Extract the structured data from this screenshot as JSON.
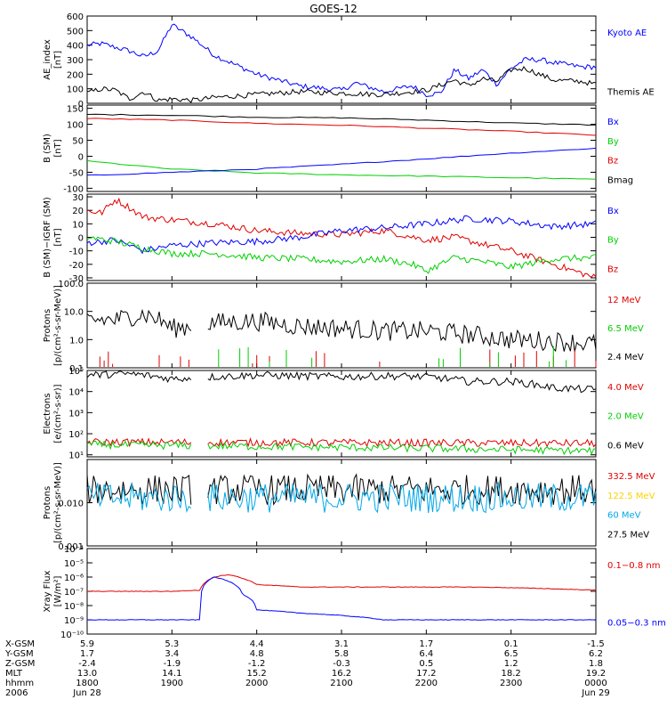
{
  "title": "GOES-12",
  "colors": {
    "black": "#000000",
    "red": "#e00000",
    "green": "#00d000",
    "blue": "#0000ff",
    "yellow": "#ffd000",
    "cyan": "#00a8e8"
  },
  "chart_data": [
    {
      "id": "ae",
      "type": "line",
      "ylabel": [
        "AE_index",
        "[nT]"
      ],
      "scale": "linear",
      "ylim": [
        0,
        600
      ],
      "ticks": [
        0,
        100,
        200,
        300,
        400,
        500,
        600
      ],
      "tick_labels": [
        "0",
        "100",
        "200",
        "300",
        "400",
        "500",
        "600"
      ],
      "legend": [
        {
          "name": "Kyoto AE",
          "color": "blue"
        },
        {
          "name": "Themis AE",
          "color": "black"
        }
      ],
      "series": [
        {
          "name": "Kyoto AE",
          "color": "blue",
          "x": [
            1800,
            1810,
            1830,
            1840,
            1850,
            1900,
            1915,
            1930,
            2000,
            2030,
            2100,
            2110,
            2130,
            2150,
            2200,
            2210,
            2220,
            2230,
            2240,
            2250,
            2300,
            2310,
            2320,
            2330,
            2350,
            2400
          ],
          "y": [
            400,
            410,
            360,
            320,
            360,
            540,
            450,
            330,
            200,
            120,
            90,
            140,
            80,
            120,
            60,
            70,
            230,
            170,
            230,
            130,
            240,
            300,
            300,
            280,
            250,
            250
          ]
        },
        {
          "name": "Themis AE",
          "color": "black",
          "x": [
            1800,
            1810,
            1820,
            1830,
            1840,
            1850,
            1900,
            1915,
            1930,
            2000,
            2030,
            2100,
            2130,
            2200,
            2220,
            2230,
            2240,
            2250,
            2300,
            2310,
            2320,
            2330,
            2350,
            2400
          ],
          "y": [
            70,
            100,
            90,
            30,
            80,
            20,
            30,
            20,
            40,
            60,
            80,
            70,
            60,
            90,
            160,
            120,
            170,
            150,
            230,
            240,
            200,
            160,
            150,
            130
          ]
        }
      ]
    },
    {
      "id": "b",
      "type": "line",
      "ylabel": [
        "B (SM)",
        "[nT]"
      ],
      "scale": "linear",
      "ylim": [
        -110,
        160
      ],
      "ticks": [
        -100,
        -50,
        0,
        50,
        100,
        150
      ],
      "tick_labels": [
        "-100",
        "-50",
        "0",
        "50",
        "100",
        "150"
      ],
      "legend": [
        {
          "name": "Bx",
          "color": "blue"
        },
        {
          "name": "By",
          "color": "green"
        },
        {
          "name": "Bz",
          "color": "red"
        },
        {
          "name": "Bmag",
          "color": "black"
        }
      ],
      "series": [
        {
          "name": "Bmag",
          "color": "black",
          "x": [
            1800,
            1900,
            2000,
            2100,
            2200,
            2300,
            2400
          ],
          "y": [
            131,
            128,
            122,
            120,
            113,
            104,
            98
          ]
        },
        {
          "name": "Bz",
          "color": "red",
          "x": [
            1800,
            1900,
            2000,
            2100,
            2200,
            2300,
            2400
          ],
          "y": [
            118,
            113,
            103,
            97,
            88,
            78,
            66
          ]
        },
        {
          "name": "By",
          "color": "green",
          "x": [
            1800,
            1900,
            2000,
            2100,
            2200,
            2300,
            2400
          ],
          "y": [
            -15,
            -40,
            -52,
            -58,
            -62,
            -67,
            -72
          ]
        },
        {
          "name": "Bx",
          "color": "blue",
          "x": [
            1800,
            1900,
            2000,
            2100,
            2200,
            2300,
            2400
          ],
          "y": [
            -60,
            -50,
            -40,
            -25,
            -8,
            10,
            25
          ]
        }
      ]
    },
    {
      "id": "bdiff",
      "type": "line",
      "ylabel": [
        "B (SM)−IGRF (SM)",
        "[nT]"
      ],
      "scale": "linear",
      "ylim": [
        -32,
        32
      ],
      "ticks": [
        -30,
        -20,
        -10,
        0,
        10,
        20,
        30
      ],
      "tick_labels": [
        "-30",
        "-20",
        "-10",
        "0",
        "10",
        "20",
        "30"
      ],
      "legend": [
        {
          "name": "Bx",
          "color": "blue"
        },
        {
          "name": "By",
          "color": "green"
        },
        {
          "name": "Bz",
          "color": "red"
        }
      ],
      "series": [
        {
          "name": "Bz",
          "color": "red",
          "x": [
            1800,
            1810,
            1820,
            1830,
            1840,
            1850,
            1900,
            1930,
            2000,
            2030,
            2100,
            2130,
            2200,
            2220,
            2240,
            2300,
            2330,
            2400
          ],
          "y": [
            20,
            18,
            28,
            22,
            15,
            14,
            13,
            10,
            5,
            3,
            2,
            5,
            -2,
            0,
            -5,
            -10,
            -20,
            -30
          ]
        },
        {
          "name": "Bx",
          "color": "blue",
          "x": [
            1800,
            1820,
            1840,
            1900,
            1930,
            2000,
            2030,
            2100,
            2130,
            2200,
            2230,
            2300,
            2330,
            2400
          ],
          "y": [
            -4,
            -2,
            -10,
            -6,
            -4,
            -3,
            0,
            5,
            7,
            10,
            14,
            12,
            8,
            10
          ]
        },
        {
          "name": "By",
          "color": "green",
          "x": [
            1800,
            1820,
            1840,
            1900,
            1930,
            2000,
            2030,
            2100,
            2130,
            2150,
            2200,
            2220,
            2240,
            2300,
            2330,
            2400
          ],
          "y": [
            0,
            -3,
            -8,
            -12,
            -12,
            -15,
            -16,
            -18,
            -16,
            -20,
            -25,
            -15,
            -18,
            -22,
            -16,
            -15
          ]
        }
      ]
    },
    {
      "id": "protons_hi",
      "type": "line",
      "ylabel": [
        "Protons",
        "[p/(cm²-s-sr-MeV)]"
      ],
      "scale": "log",
      "ylim": [
        0.1,
        100
      ],
      "ticks": [
        0.1,
        1,
        10,
        100
      ],
      "tick_labels": [
        "0.1",
        "1.0",
        "10.0",
        "100.0"
      ],
      "legend": [
        {
          "name": "12 MeV",
          "color": "red"
        },
        {
          "name": "6.5 MeV",
          "color": "green"
        },
        {
          "name": "2.4 MeV",
          "color": "black"
        }
      ],
      "gaps": [
        [
          1915,
          1925
        ]
      ],
      "series": [
        {
          "name": "2.4 MeV",
          "color": "black",
          "x": [
            1800,
            1820,
            1840,
            1900,
            1910,
            1930,
            2000,
            2030,
            2100,
            2130,
            2200,
            2230,
            2300,
            2330,
            2400
          ],
          "y": [
            5,
            5,
            8,
            2.5,
            2.8,
            4,
            4.5,
            3,
            2.5,
            2,
            2,
            1.5,
            1,
            0.9,
            0.7
          ]
        }
      ]
    },
    {
      "id": "electrons",
      "type": "line",
      "ylabel": [
        "Electrons",
        "[e/(cm²-s-sr)]"
      ],
      "scale": "log",
      "ylim": [
        8,
        100000
      ],
      "ticks": [
        10,
        100,
        1000,
        10000,
        100000
      ],
      "tick_labels": [
        "10¹",
        "10²",
        "10³",
        "10⁴",
        "10⁵"
      ],
      "legend": [
        {
          "name": "4.0 MeV",
          "color": "red"
        },
        {
          "name": "2.0 MeV",
          "color": "green"
        },
        {
          "name": "0.6 MeV",
          "color": "black"
        }
      ],
      "gaps": [
        [
          1915,
          1925
        ]
      ],
      "series": [
        {
          "name": "0.6 MeV",
          "color": "black",
          "x": [
            1800,
            1830,
            1900,
            1930,
            2000,
            2030,
            2100,
            2130,
            2200,
            2230,
            2300,
            2330,
            2400
          ],
          "y": [
            60000,
            70000,
            40000,
            50000,
            60000,
            55000,
            50000,
            55000,
            50000,
            30000,
            30000,
            15000,
            12000
          ]
        },
        {
          "name": "4.0 MeV",
          "color": "red",
          "x": [
            1800,
            2400
          ],
          "y": [
            40,
            35
          ]
        },
        {
          "name": "2.0 MeV",
          "color": "green",
          "x": [
            1800,
            2400
          ],
          "y": [
            30,
            15
          ]
        }
      ]
    },
    {
      "id": "protons_lo",
      "type": "line",
      "ylabel": [
        "Protons",
        "[p/(cm²-s-sr-MeV)]"
      ],
      "scale": "log",
      "ylim": [
        0.001,
        0.1
      ],
      "ticks": [
        0.001,
        0.01
      ],
      "tick_labels": [
        "0.001",
        "0.010"
      ],
      "legend": [
        {
          "name": "332.5 MeV",
          "color": "red"
        },
        {
          "name": "122.5 MeV",
          "color": "yellow"
        },
        {
          "name": "60 MeV",
          "color": "cyan"
        },
        {
          "name": "27.5 MeV",
          "color": "black"
        }
      ],
      "gaps": [
        [
          1915,
          1925
        ]
      ],
      "series": [
        {
          "name": "27.5 MeV",
          "color": "black",
          "x": [
            1800,
            2400
          ],
          "y": [
            0.02,
            0.02
          ]
        },
        {
          "name": "60 MeV",
          "color": "cyan",
          "x": [
            1800,
            2400
          ],
          "y": [
            0.013,
            0.013
          ]
        }
      ]
    },
    {
      "id": "xray",
      "type": "line",
      "ylabel": [
        "Xray Flux",
        "[W/m²]"
      ],
      "scale": "log",
      "ylim": [
        1e-10,
        0.0001
      ],
      "ticks": [
        1e-10,
        1e-09,
        1e-08,
        1e-07,
        1e-06,
        1e-05,
        0.0001
      ],
      "tick_labels": [
        "10⁻¹⁰",
        "10⁻⁹",
        "10⁻⁸",
        "10⁻⁷",
        "10⁻⁶",
        "10⁻⁵",
        "10⁻⁴"
      ],
      "legend": [
        {
          "name": "0.1−0.8 nm",
          "color": "red"
        },
        {
          "name": "0.05−0.3 nm",
          "color": "blue"
        }
      ],
      "series": [
        {
          "name": "0.1−0.8 nm",
          "color": "red",
          "x": [
            1800,
            1900,
            1920,
            1930,
            1940,
            1950,
            2000,
            2030,
            2100,
            2130,
            2200,
            2230,
            2300,
            2330,
            2400
          ],
          "y": [
            1e-07,
            1e-07,
            1.2e-07,
            1e-06,
            1.5e-06,
            8e-07,
            3e-07,
            2e-07,
            2e-07,
            2e-07,
            2e-07,
            2e-07,
            1.8e-07,
            1.5e-07,
            1.2e-07
          ]
        },
        {
          "name": "0.05−0.3 nm",
          "color": "blue",
          "x": [
            1800,
            1900,
            1920,
            1930,
            1940,
            1950,
            2000,
            2030,
            2100,
            2130,
            2200,
            2230,
            2300,
            2330,
            2400
          ],
          "y": [
            1e-09,
            1e-09,
            1e-09,
            1e-06,
            5e-07,
            6e-08,
            5e-09,
            3e-09,
            2e-09,
            1e-09,
            1e-09,
            1e-09,
            1e-09,
            1e-09,
            1e-09
          ]
        }
      ]
    }
  ],
  "x_axis": {
    "xlim": [
      1800,
      2400
    ],
    "ticks": [
      1800,
      1900,
      2000,
      2100,
      2200,
      2300,
      2400
    ],
    "rows": [
      {
        "label": "X-GSM",
        "values": [
          "5.9",
          "5.3",
          "4.4",
          "3.1",
          "1.7",
          "0.1",
          "-1.5"
        ]
      },
      {
        "label": "Y-GSM",
        "values": [
          "1.7",
          "3.4",
          "4.8",
          "5.8",
          "6.4",
          "6.5",
          "6.2"
        ]
      },
      {
        "label": "Z-GSM",
        "values": [
          "-2.4",
          "-1.9",
          "-1.2",
          "-0.3",
          "0.5",
          "1.2",
          "1.8"
        ]
      },
      {
        "label": "MLT",
        "values": [
          "13.0",
          "14.1",
          "15.2",
          "16.2",
          "17.2",
          "18.2",
          "19.2"
        ]
      },
      {
        "label": "hhmm",
        "values": [
          "1800",
          "1900",
          "2000",
          "2100",
          "2200",
          "2300",
          "0000"
        ]
      },
      {
        "label": "2006",
        "values": [
          "Jun 28",
          "",
          "",
          "",
          "",
          "",
          "Jun 29"
        ]
      }
    ]
  }
}
